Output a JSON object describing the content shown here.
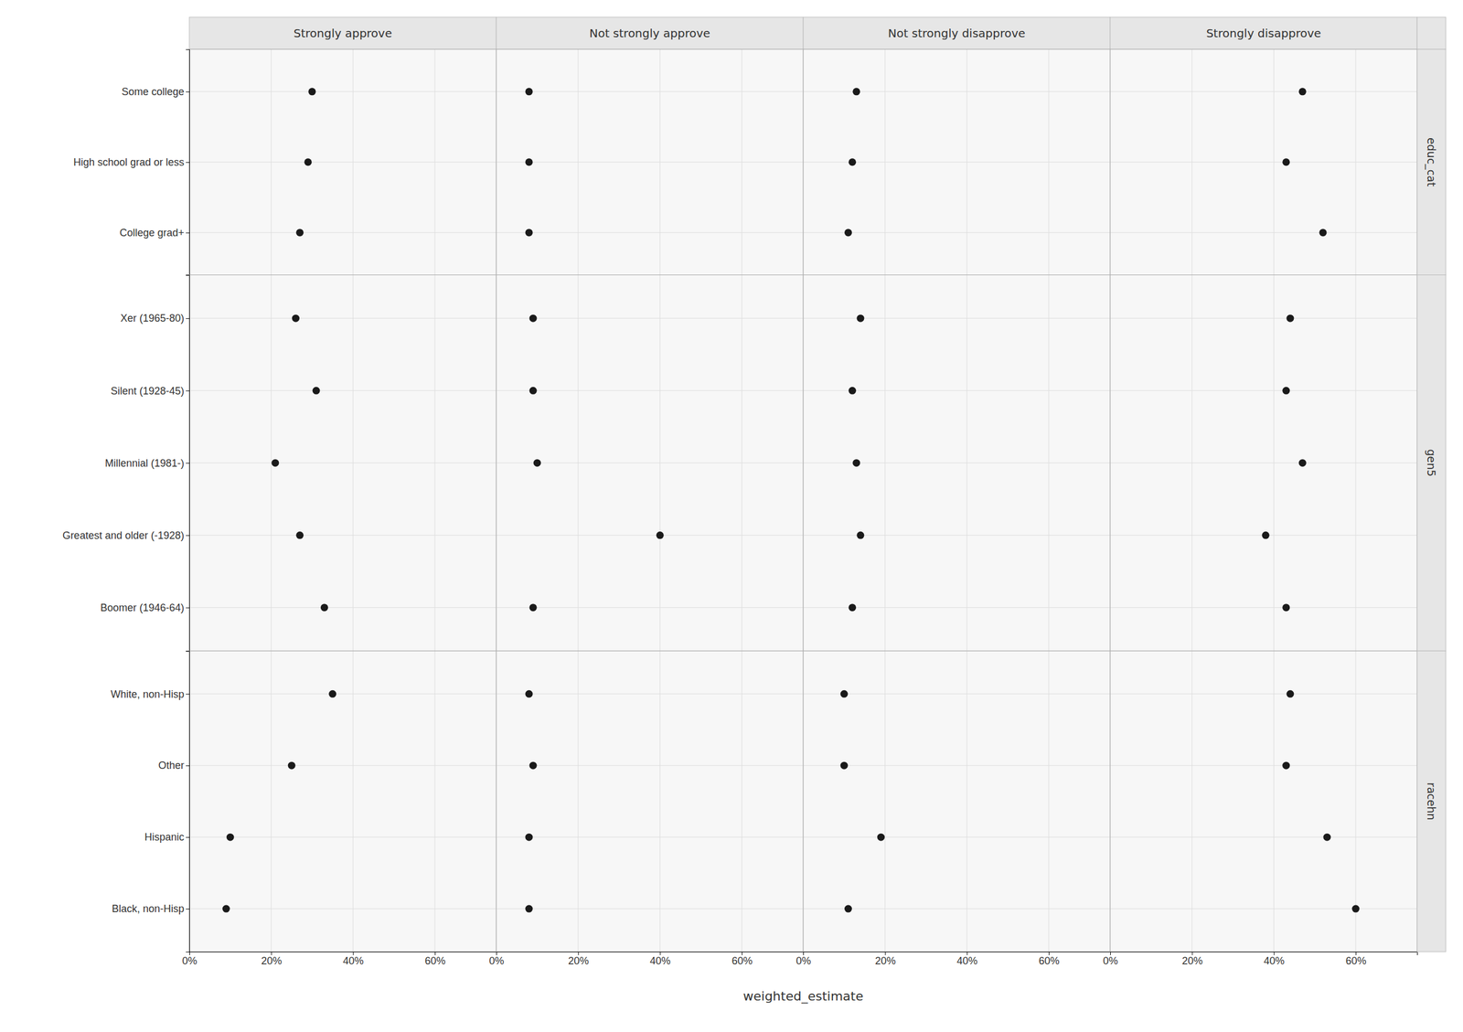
{
  "chart_data": {
    "type": "dot",
    "xlabel": "weighted_estimate",
    "columns": [
      "Strongly approve",
      "Not strongly approve",
      "Not strongly disapprove",
      "Strongly disapprove"
    ],
    "row_groups": [
      {
        "label": "educ_cat",
        "categories": [
          "Some college",
          "High school grad or less",
          "College grad+"
        ],
        "values": [
          [
            0.3,
            0.29,
            0.27
          ],
          [
            0.08,
            0.08,
            0.08
          ],
          [
            0.13,
            0.12,
            0.11
          ],
          [
            0.47,
            0.43,
            0.52
          ]
        ]
      },
      {
        "label": "gen5",
        "categories": [
          "Xer (1965-80)",
          "Silent (1928-45)",
          "Millennial (1981-)",
          "Greatest and older (-1928)",
          "Boomer (1946-64)"
        ],
        "values": [
          [
            0.26,
            0.31,
            0.21,
            0.27,
            0.33
          ],
          [
            0.09,
            0.09,
            0.1,
            0.4,
            0.09
          ],
          [
            0.14,
            0.12,
            0.13,
            0.14,
            0.12
          ],
          [
            0.44,
            0.43,
            0.47,
            0.38,
            0.43
          ]
        ]
      },
      {
        "label": "racehn",
        "categories": [
          "White, non-Hisp",
          "Other",
          "Hispanic",
          "Black, non-Hisp"
        ],
        "values": [
          [
            0.35,
            0.25,
            0.1,
            0.09
          ],
          [
            0.08,
            0.09,
            0.08,
            0.08
          ],
          [
            0.1,
            0.1,
            0.19,
            0.11
          ],
          [
            0.44,
            0.43,
            0.53,
            0.6
          ]
        ]
      }
    ],
    "xlim": [
      0.0,
      0.75
    ],
    "xticks": [
      {
        "value": 0.0,
        "label": "0%"
      },
      {
        "value": 0.2,
        "label": "20%"
      },
      {
        "value": 0.4,
        "label": "40%"
      },
      {
        "value": 0.6,
        "label": "60%"
      }
    ],
    "color": "#1a1a1a",
    "grid": true
  }
}
